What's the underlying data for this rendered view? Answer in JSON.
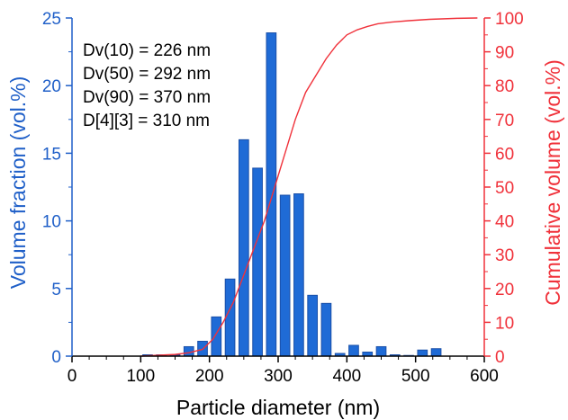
{
  "chart_data": {
    "type": "bar",
    "xlabel": "Particle diameter (nm)",
    "ylabel_left": "Volume fraction (vol.%)",
    "ylabel_right": "Cumulative volume (vol.%)",
    "xlim": [
      0,
      600
    ],
    "ylim_left": [
      0,
      25
    ],
    "ylim_right": [
      0,
      100
    ],
    "x_ticks": [
      0,
      100,
      200,
      300,
      400,
      500,
      600
    ],
    "y_left_ticks": [
      0,
      5,
      10,
      15,
      20,
      25
    ],
    "y_right_ticks": [
      0,
      10,
      20,
      30,
      40,
      50,
      60,
      70,
      80,
      90,
      100
    ],
    "bar_width": 14,
    "colors": {
      "bars": "#1f6bd6",
      "bar_edge": "#1a4fa8",
      "cumulative": "#f0313a",
      "left_axis": "#1f5fc8",
      "right_axis": "#f0313a"
    },
    "series": [
      {
        "name": "Volume fraction",
        "axis": "left",
        "type": "bar",
        "x": [
          110,
          130,
          150,
          170,
          190,
          210,
          230,
          250,
          270,
          290,
          310,
          330,
          350,
          370,
          390,
          410,
          430,
          450,
          470,
          490,
          510,
          530,
          550,
          570,
          590
        ],
        "values": [
          0.1,
          0.1,
          0.1,
          0.7,
          1.1,
          2.9,
          5.7,
          16.0,
          13.9,
          23.9,
          11.9,
          12.0,
          4.5,
          3.9,
          0.2,
          0.8,
          0.3,
          0.7,
          0.1,
          0.05,
          0.45,
          0.55,
          0,
          0,
          0
        ]
      },
      {
        "name": "Cumulative volume",
        "axis": "right",
        "type": "line",
        "x": [
          100,
          150,
          170,
          190,
          205,
          220,
          235,
          250,
          265,
          280,
          295,
          310,
          325,
          340,
          355,
          370,
          385,
          400,
          415,
          430,
          445,
          465,
          490,
          520,
          560,
          590
        ],
        "values": [
          0,
          0.5,
          1,
          2,
          5,
          10,
          16,
          24,
          32,
          40,
          50,
          60,
          70,
          78,
          83,
          88,
          92,
          95,
          96.5,
          97.5,
          98.3,
          98.8,
          99.2,
          99.6,
          99.9,
          100
        ]
      }
    ],
    "annotations": [
      "Dv(10) = 226 nm",
      "Dv(50) = 292 nm",
      "Dv(90) = 370 nm",
      "D[4][3] = 310 nm"
    ]
  }
}
